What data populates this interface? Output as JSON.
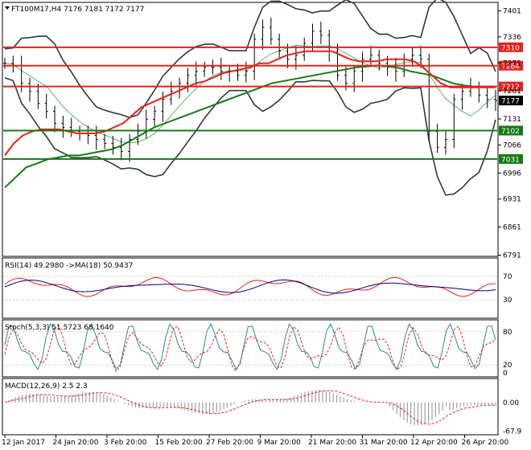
{
  "symbol_line": "FT100M17,H4  7176 7181 7172 7177",
  "rsi_label": "RSI(14) 49.2980  ->MA(18) 50.9437",
  "stoch_label": "Stoch(5,3,3) 51.5723 68.1640",
  "macd_label": "MACD(12,26,9) 2.5 2.3",
  "colors": {
    "price_bars": "#000000",
    "ma_red": "#e8211b",
    "ma_green": "#167a16",
    "bollinger": "#2c3a40",
    "hline_red": "#e8211b",
    "hline_green": "#167a16",
    "badge_black": "#000000",
    "macd_hist": "#a0a0a0",
    "signal": "#e8211b",
    "rsi_line": "#e8211b",
    "rsi_ma": "#000080",
    "stoch_main": "#2a8a8a",
    "stoch_signal": "#e8211b"
  },
  "chart_data": {
    "type": "line",
    "price_panel": {
      "y_ticks": [
        "7401",
        "7336",
        "7271",
        "7201",
        "7131",
        "7066",
        "6996",
        "6931",
        "6861",
        "6791"
      ],
      "y_tick_values": [
        7401,
        7336,
        7271,
        7201,
        7131,
        7066,
        6996,
        6931,
        6861,
        6791
      ],
      "ylim": [
        6790,
        7420
      ],
      "levels": [
        {
          "label": "7310",
          "value": 7310,
          "color": "red"
        },
        {
          "label": "7264",
          "value": 7264,
          "color": "red"
        },
        {
          "label": "7212",
          "value": 7212,
          "color": "red"
        },
        {
          "label": "7102",
          "value": 7102,
          "color": "green"
        },
        {
          "label": "7031",
          "value": 7031,
          "color": "green"
        }
      ],
      "current_price": {
        "label": "7177",
        "value": 7177
      },
      "closes": [
        7270,
        7265,
        7220,
        7200,
        7170,
        7150,
        7120,
        7110,
        7100,
        7095,
        7090,
        7080,
        7070,
        7060,
        7050,
        7080,
        7100,
        7130,
        7150,
        7180,
        7200,
        7220,
        7240,
        7250,
        7260,
        7260,
        7250,
        7250,
        7240,
        7250,
        7330,
        7360,
        7330,
        7300,
        7280,
        7290,
        7320,
        7350,
        7340,
        7300,
        7240,
        7220,
        7250,
        7280,
        7290,
        7270,
        7260,
        7250,
        7280,
        7290,
        7280,
        7100,
        7060,
        7080,
        7180,
        7200,
        7210,
        7190,
        7180,
        7177
      ],
      "red_ma": [
        7040,
        7070,
        7090,
        7100,
        7105,
        7105,
        7105,
        7100,
        7095,
        7095,
        7095,
        7100,
        7110,
        7120,
        7140,
        7160,
        7170,
        7180,
        7190,
        7200,
        7210,
        7220,
        7225,
        7235,
        7245,
        7250,
        7255,
        7260,
        7270,
        7270,
        7280,
        7290,
        7295,
        7300,
        7300,
        7300,
        7300,
        7290,
        7280,
        7275,
        7275,
        7275,
        7280,
        7280,
        7280,
        7275,
        7260,
        7240,
        7220,
        7210,
        7210,
        7210,
        7210,
        7210,
        7210
      ],
      "green_ma": [
        6960,
        6985,
        7010,
        7020,
        7030,
        7035,
        7040,
        7040,
        7045,
        7050,
        7055,
        7065,
        7080,
        7095,
        7110,
        7120,
        7130,
        7140,
        7150,
        7160,
        7170,
        7180,
        7190,
        7200,
        7210,
        7220,
        7225,
        7230,
        7235,
        7240,
        7245,
        7250,
        7255,
        7260,
        7262,
        7265,
        7262,
        7258,
        7250,
        7245,
        7240,
        7230,
        7220,
        7215,
        7212,
        7212,
        7212
      ]
    },
    "rsi_panel": {
      "y_ticks": [
        "70",
        "30"
      ],
      "y_tick_values": [
        70,
        30
      ],
      "ylim": [
        0,
        100
      ]
    },
    "stoch_panel": {
      "y_ticks": [
        "80",
        "20",
        "0"
      ],
      "y_tick_values": [
        80,
        20,
        0
      ],
      "ylim": [
        0,
        100
      ]
    },
    "macd_panel": {
      "y_ticks": [
        "0.00",
        "-67.9"
      ],
      "y_tick_values": [
        0,
        -67.9
      ],
      "ylim": [
        -75,
        55
      ]
    },
    "x_ticks": [
      "12 Jan 2017",
      "24 Jan 20:00",
      "3 Feb 20:00",
      "15 Feb 20:00",
      "27 Feb 20:00",
      "9 Mar 20:00",
      "21 Mar 20:00",
      "31 Mar 20:00",
      "12 Apr 20:00",
      "26 Apr 20:00"
    ]
  }
}
